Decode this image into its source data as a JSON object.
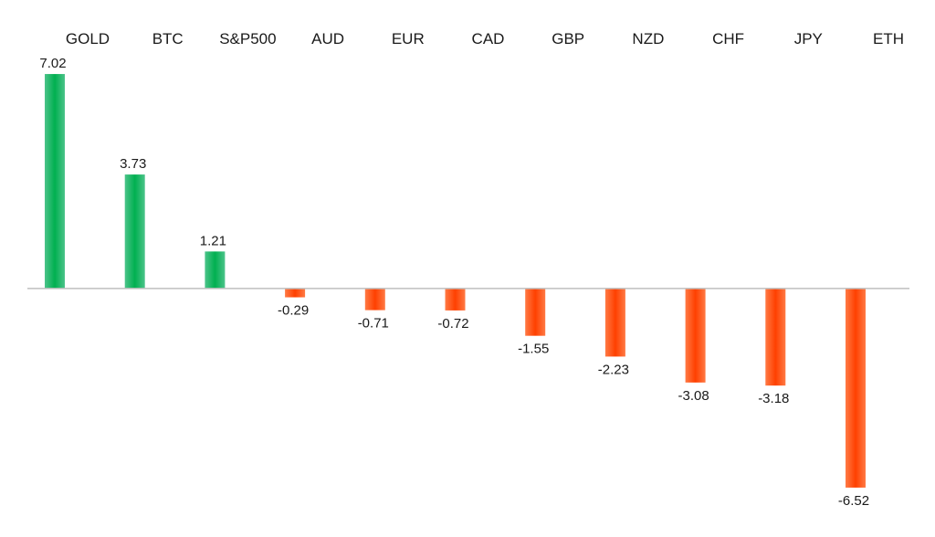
{
  "chart_data": {
    "type": "bar",
    "title": "",
    "xlabel": "",
    "ylabel": "",
    "categories": [
      "GOLD",
      "BTC",
      "S&P500",
      "AUD",
      "EUR",
      "CAD",
      "GBP",
      "NZD",
      "CHF",
      "JPY",
      "ETH"
    ],
    "values": [
      7.02,
      3.73,
      1.21,
      -0.29,
      -0.71,
      -0.72,
      -1.55,
      -2.23,
      -3.08,
      -3.18,
      -6.52
    ],
    "value_labels": [
      "7.02",
      "3.73",
      "1.21",
      "-0.29",
      "-0.71",
      "-0.72",
      "-1.55",
      "-2.23",
      "-3.08",
      "-3.18",
      "-6.52"
    ],
    "ylim": [
      -7.3,
      7.5
    ],
    "grid": false,
    "legend": "none",
    "category_axis_position": "top",
    "colors": {
      "positive_light": "#4cc38a",
      "positive_dark": "#00b050",
      "negative_light": "#ff7a45",
      "negative_dark": "#ff4000",
      "axis": "#bfbfbf",
      "text": "#1a1a1a"
    }
  }
}
